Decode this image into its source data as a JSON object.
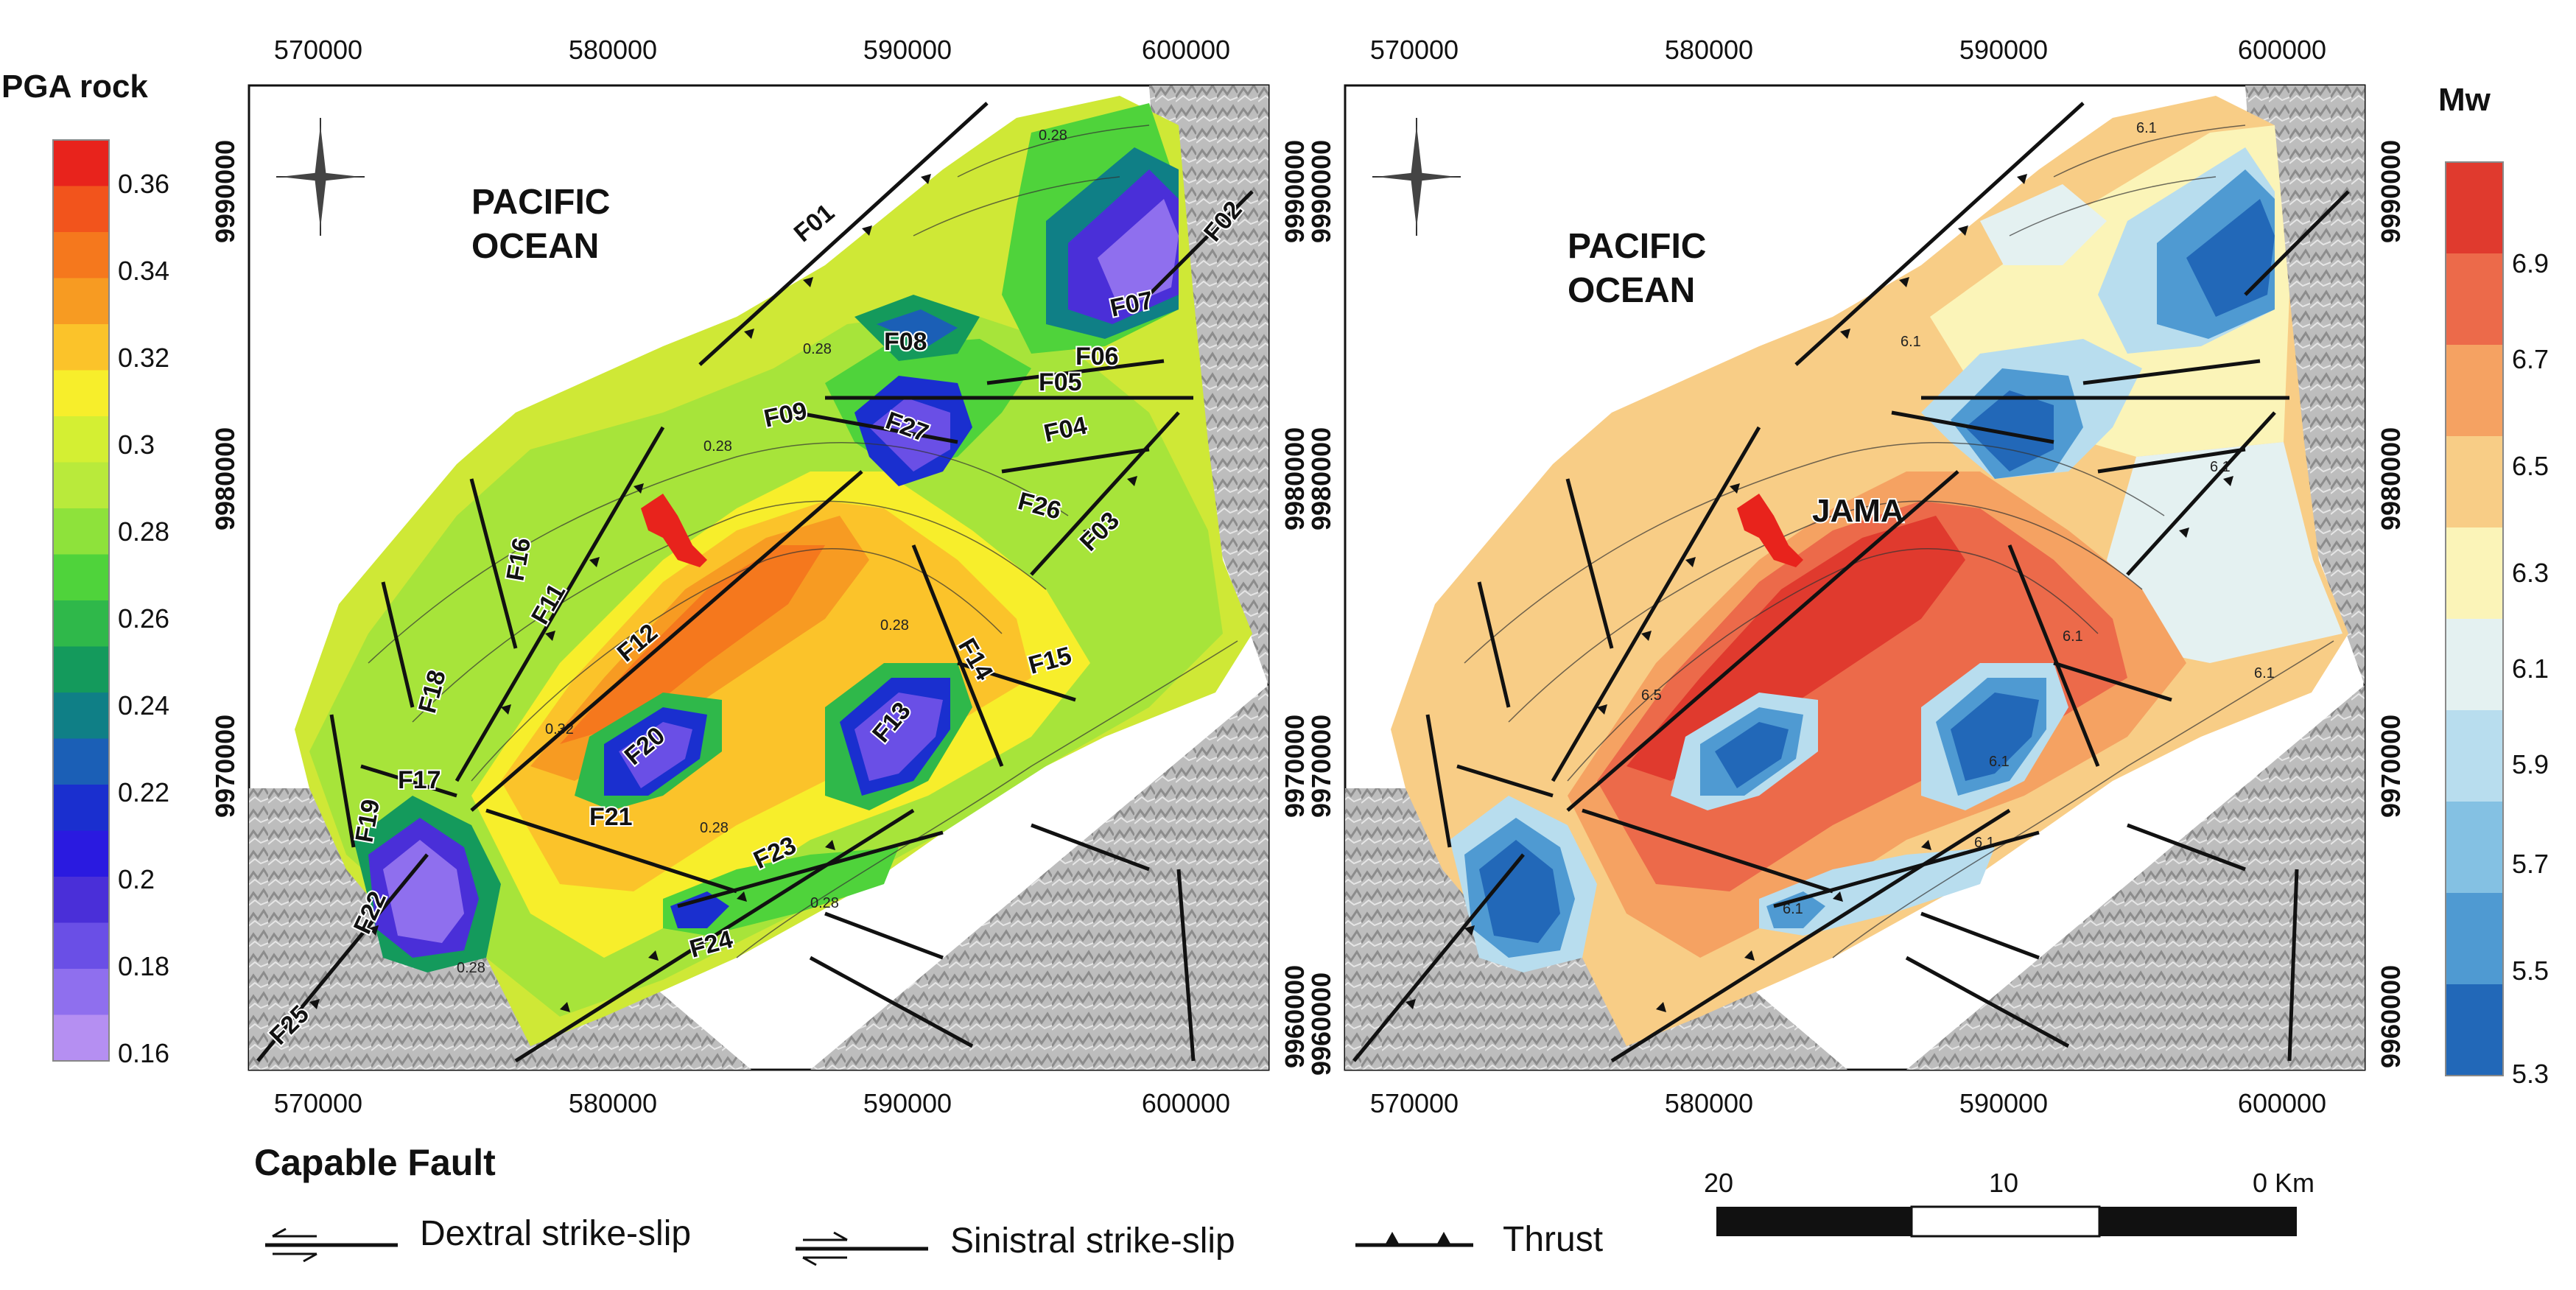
{
  "left_panel": {
    "legend_title": "PGA rock",
    "legend_values": [
      "0.36",
      "0.34",
      "0.32",
      "0.3",
      "0.28",
      "0.26",
      "0.24",
      "0.22",
      "0.2",
      "0.18",
      "0.16"
    ],
    "legend_colors": [
      "#e8231c",
      "#f2541c",
      "#f5781d",
      "#f79b22",
      "#fbc32a",
      "#f7ee2b",
      "#d4ef33",
      "#b9ea3b",
      "#8ee23b",
      "#4fd33b",
      "#2fb84a",
      "#149a5c",
      "#0f7f86",
      "#1b5fb6",
      "#1a2fcf",
      "#2a1ae0",
      "#4a2fd8",
      "#6a4fe6",
      "#8f6fee",
      "#b58ff2"
    ],
    "ocean_label": [
      "PACIFIC",
      "OCEAN"
    ],
    "x_ticks": [
      "570000",
      "580000",
      "590000",
      "600000"
    ],
    "y_ticks": [
      "9990000",
      "9980000",
      "9970000",
      "9960000"
    ],
    "contour_labels": [
      "0.28",
      "0.28",
      "0.28",
      "0.32",
      "0.28",
      "0.28",
      "0.28",
      "0.28"
    ],
    "fault_labels": [
      "F01",
      "F02",
      "F03",
      "F04",
      "F05",
      "F06",
      "F07",
      "F08",
      "F09",
      "F27",
      "F26",
      "F16",
      "F11",
      "F12",
      "F18",
      "F17",
      "F19",
      "F22",
      "F25",
      "F20",
      "F21",
      "F13",
      "F14",
      "F15",
      "F23",
      "F24"
    ]
  },
  "right_panel": {
    "legend_title": "Mw",
    "legend_values": [
      "6.9",
      "6.7",
      "6.5",
      "6.3",
      "6.1",
      "5.9",
      "5.7",
      "5.5",
      "5.3"
    ],
    "legend_colors": [
      "#e03a2e",
      "#ec6a4a",
      "#f5a262",
      "#f8cd86",
      "#fbf4b8",
      "#e4f1f1",
      "#b8ddee",
      "#84c1e3",
      "#4f9ad2",
      "#2268b8"
    ],
    "ocean_label": [
      "PACIFIC",
      "OCEAN"
    ],
    "town_label": "JAMA",
    "x_ticks": [
      "570000",
      "580000",
      "590000",
      "600000"
    ],
    "y_ticks": [
      "9990000",
      "9980000",
      "9970000",
      "9960000"
    ],
    "contour_labels": [
      "6.1",
      "6.1",
      "6.1",
      "6.1",
      "6.1",
      "6.5",
      "6.1",
      "6.1",
      "6.1"
    ]
  },
  "fault_legend": {
    "title": "Capable Fault",
    "items": [
      "Dextral strike-slip",
      "Sinistral strike-slip",
      "Thrust"
    ]
  },
  "scale_bar": {
    "labels": [
      "20",
      "10",
      "0 Km"
    ]
  },
  "colors": {
    "town": "#e8231c",
    "fault_line": "#111111",
    "relief": "#b9b9b9"
  },
  "icons": [
    "north-arrow-icon",
    "dextral-fault-symbol-icon",
    "sinistral-fault-symbol-icon",
    "thrust-fault-symbol-icon"
  ]
}
